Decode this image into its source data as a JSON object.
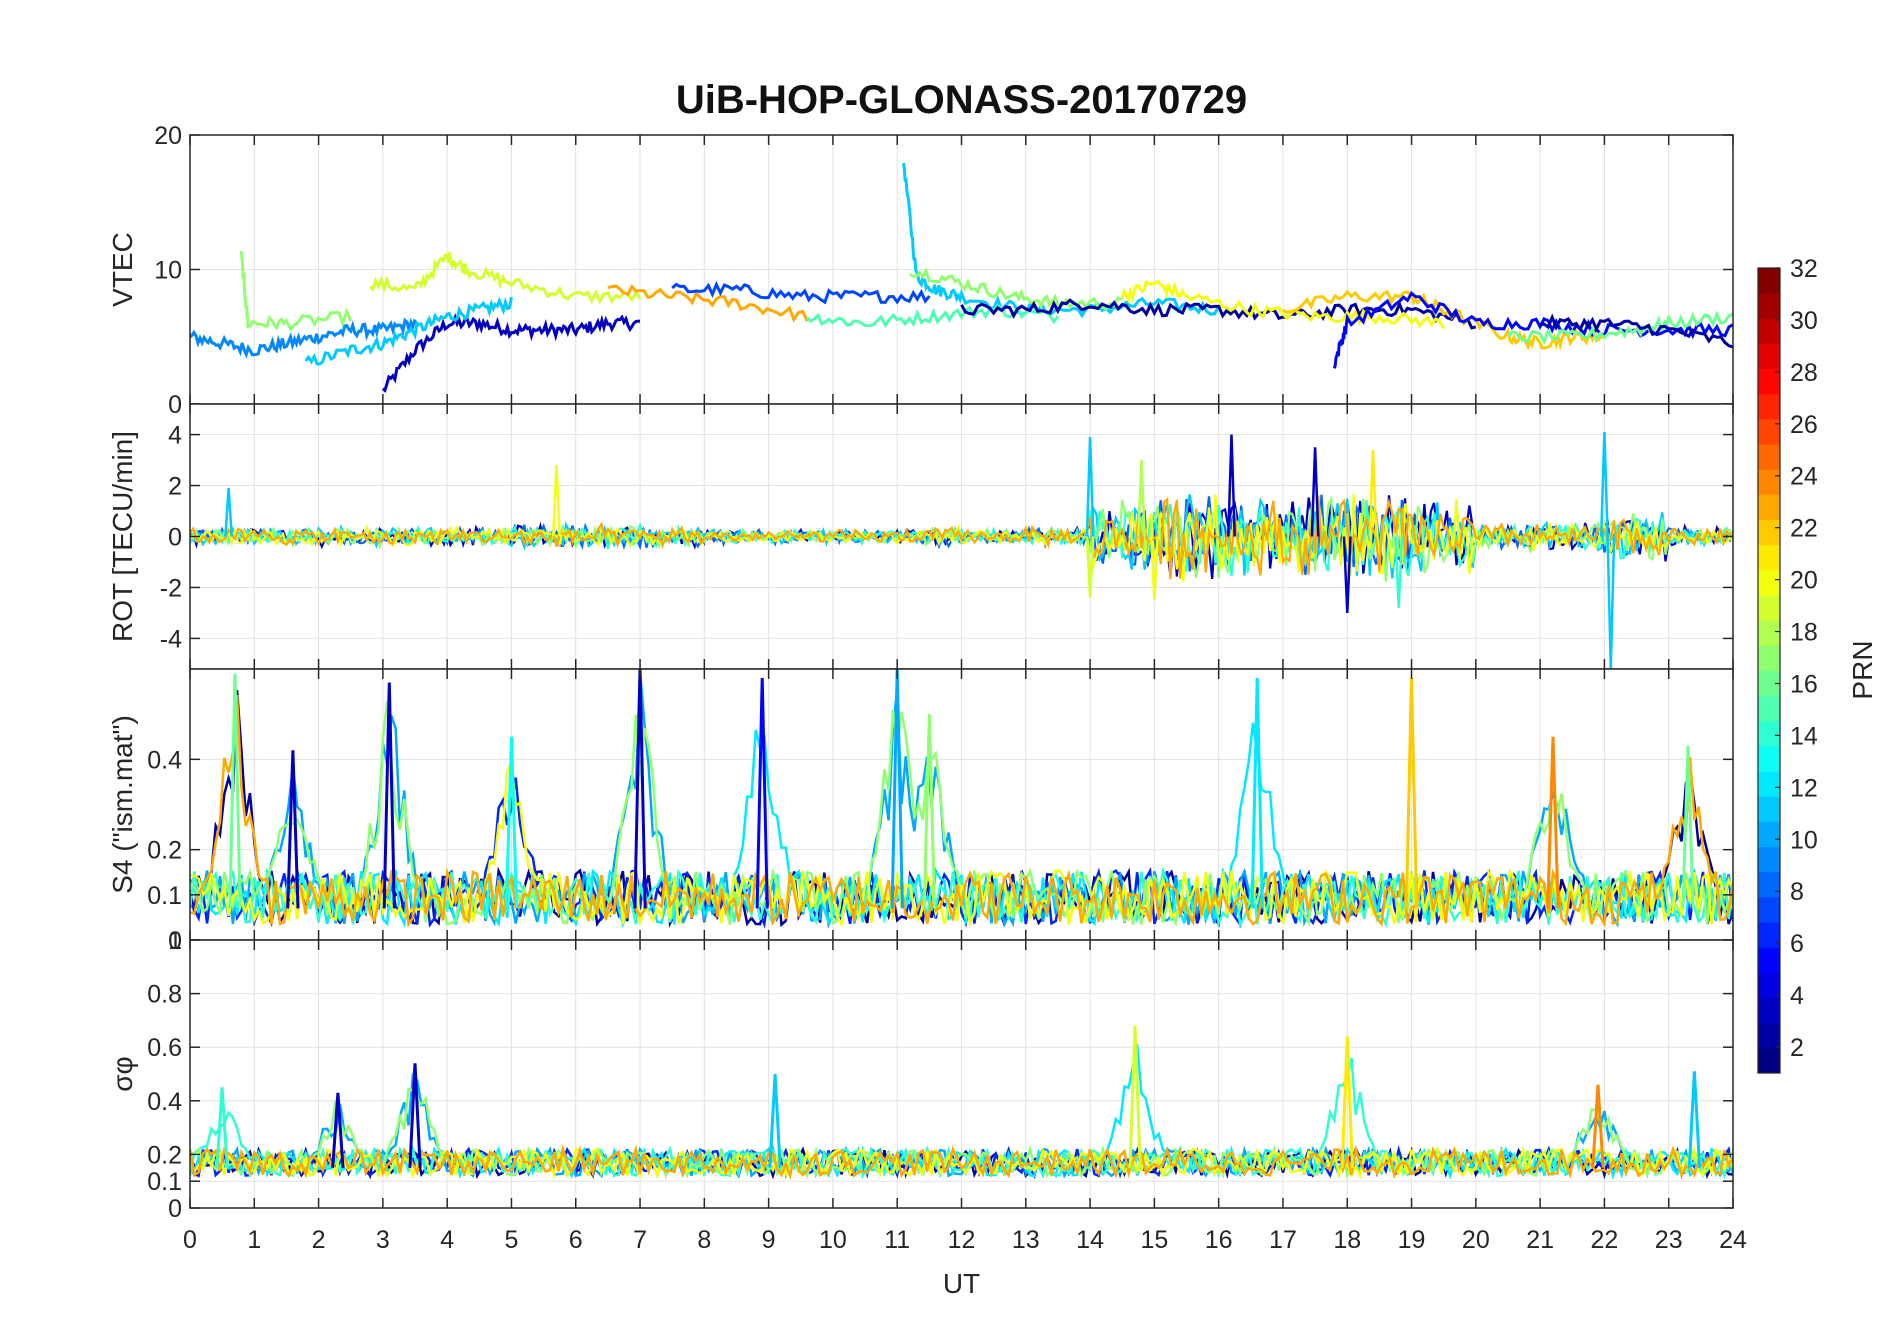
{
  "figure": {
    "title": "UiB-HOP-GLONASS-20170729",
    "xlabel": "UT",
    "x_ticks": [
      "0",
      "1",
      "2",
      "3",
      "4",
      "5",
      "6",
      "7",
      "8",
      "9",
      "10",
      "11",
      "12",
      "13",
      "14",
      "15",
      "16",
      "17",
      "18",
      "19",
      "20",
      "21",
      "22",
      "23",
      "24"
    ]
  },
  "colorbar": {
    "label": "PRN",
    "ticks": [
      "2",
      "4",
      "6",
      "8",
      "10",
      "12",
      "14",
      "16",
      "18",
      "20",
      "22",
      "24",
      "26",
      "28",
      "30",
      "32"
    ],
    "range": [
      1,
      32
    ],
    "colormap": "jet"
  },
  "chart_data": [
    {
      "type": "line",
      "panel": "vtec",
      "ylabel": "VTEC",
      "ylim": [
        0,
        20
      ],
      "xlim": [
        0,
        24
      ],
      "y_ticks": [
        "0",
        "10",
        "20"
      ],
      "grid": true,
      "series": [
        {
          "prn": 3,
          "x": [
            3.0,
            3.5,
            4.0,
            4.5,
            5.0,
            5.5,
            6.0,
            6.5,
            7.0
          ],
          "y": [
            1,
            4,
            6,
            6,
            5.5,
            5.5,
            5.5,
            6,
            6
          ]
        },
        {
          "prn": 9,
          "x": [
            0.0,
            0.5,
            1.0,
            1.5,
            2.0,
            2.5,
            3.0,
            3.5
          ],
          "y": [
            5,
            4.5,
            4,
            4.5,
            5,
            5.5,
            5.5,
            6
          ]
        },
        {
          "prn": 11,
          "x": [
            1.8,
            2.5,
            3.0,
            3.5,
            4.0,
            4.5,
            5.0
          ],
          "y": [
            3,
            4,
            4.5,
            5.5,
            6.5,
            7,
            7.5
          ]
        },
        {
          "prn": 11,
          "x": [
            11.1,
            11.3,
            11.6,
            12.0,
            13.0,
            14.0,
            15.0,
            16.0
          ],
          "y": [
            18,
            9.5,
            8.5,
            8,
            7,
            7,
            7.5,
            7
          ]
        },
        {
          "prn": 19,
          "x": [
            2.8,
            3.5,
            4.0,
            4.3,
            5.0,
            6.0,
            7.0
          ],
          "y": [
            9,
            8.5,
            11,
            10,
            9,
            8,
            8
          ]
        },
        {
          "prn": 17,
          "x": [
            0.8,
            0.9,
            1.5,
            2.5
          ],
          "y": [
            11,
            6,
            6,
            6.5
          ]
        },
        {
          "prn": 23,
          "x": [
            6.5,
            7.5,
            8.5,
            9.6
          ],
          "y": [
            8.5,
            8,
            7.5,
            6.5
          ]
        },
        {
          "prn": 7,
          "x": [
            7.5,
            8.5,
            9.5,
            10.5,
            11.5
          ],
          "y": [
            8.5,
            8.5,
            8,
            8,
            8
          ]
        },
        {
          "prn": 15,
          "x": [
            9.6,
            10.5,
            11.5,
            12.5,
            13.5
          ],
          "y": [
            6.5,
            6,
            6.5,
            7,
            6.5
          ]
        },
        {
          "prn": 17,
          "x": [
            11.2,
            12.0,
            12.8,
            13.5,
            14.5
          ],
          "y": [
            10,
            9,
            8,
            7.5,
            7.5
          ]
        },
        {
          "prn": 2,
          "x": [
            12.0,
            13.0,
            14.0,
            15.0,
            16.0,
            17.0,
            18.0,
            19.0,
            20.0
          ],
          "y": [
            7,
            7,
            7.5,
            7,
            7,
            6.5,
            7,
            7,
            6
          ]
        },
        {
          "prn": 20,
          "x": [
            14.5,
            15.0,
            15.5,
            16.5,
            17.5,
            18.5,
            19.5
          ],
          "y": [
            8,
            9,
            8,
            7,
            6.5,
            6.5,
            6
          ]
        },
        {
          "prn": 22,
          "x": [
            17.0,
            18.0,
            19.0,
            19.5,
            20.5,
            21.0,
            21.5,
            22.0
          ],
          "y": [
            7,
            8,
            8,
            7,
            5,
            4.5,
            5,
            5
          ]
        },
        {
          "prn": 5,
          "x": [
            17.8,
            18.0,
            19.0,
            20.0,
            21.0,
            22.0,
            23.0,
            24.0
          ],
          "y": [
            3,
            6,
            8,
            6,
            6,
            5.5,
            5.5,
            5.5
          ]
        },
        {
          "prn": 16,
          "x": [
            20.5,
            21.5,
            22.5,
            23.0,
            24.0
          ],
          "y": [
            5,
            5,
            5.5,
            6,
            6.5
          ]
        },
        {
          "prn": 2,
          "x": [
            21.0,
            22.0,
            23.0,
            24.0
          ],
          "y": [
            6,
            6,
            5.5,
            4.5
          ]
        }
      ]
    },
    {
      "type": "line",
      "panel": "rot",
      "ylabel": "ROT [TECU/min]",
      "ylim": [
        -5.2,
        5.2
      ],
      "xlim": [
        0,
        24
      ],
      "y_ticks": [
        "-4",
        "-2",
        "0",
        "2",
        "4"
      ],
      "grid": true,
      "spikes": [
        {
          "x": 0.6,
          "y": 1.9,
          "prn": 11
        },
        {
          "x": 5.7,
          "y": 2.8,
          "prn": 20
        },
        {
          "x": 14.0,
          "y": 3.9,
          "prn": 11
        },
        {
          "x": 14.0,
          "y": -2.4,
          "prn": 19
        },
        {
          "x": 16.2,
          "y": 4.0,
          "prn": 3
        },
        {
          "x": 17.5,
          "y": 3.5,
          "prn": 3
        },
        {
          "x": 18.0,
          "y": -3.0,
          "prn": 3
        },
        {
          "x": 18.4,
          "y": 3.4,
          "prn": 21
        },
        {
          "x": 18.8,
          "y": -2.8,
          "prn": 14
        },
        {
          "x": 22.0,
          "y": 4.1,
          "prn": 11
        },
        {
          "x": 22.1,
          "y": -5.2,
          "prn": 11
        },
        {
          "x": 15.0,
          "y": -2.5,
          "prn": 20
        },
        {
          "x": 14.8,
          "y": 3.0,
          "prn": 18
        }
      ],
      "activity": [
        0.4,
        0.4,
        0.4,
        0.4,
        0.4,
        0.5,
        0.5,
        0.5,
        0.3,
        0.3,
        0.3,
        0.4,
        0.3,
        0.4,
        1.5,
        2.0,
        1.8,
        1.8,
        2.0,
        1.6,
        0.6,
        0.6,
        1.0,
        0.4,
        0.4
      ]
    },
    {
      "type": "line",
      "panel": "s4",
      "ylabel": "S4 (\"ism.mat\")",
      "ylim": [
        0,
        0.6
      ],
      "xlim": [
        0,
        24
      ],
      "y_ticks": [
        "0",
        "0.1",
        "0.2",
        "0.4"
      ],
      "grid": true,
      "peaks": [
        {
          "x": 0.7,
          "y": 0.59,
          "prn": 16
        },
        {
          "x": 1.6,
          "y": 0.42,
          "prn": 3
        },
        {
          "x": 3.1,
          "y": 0.57,
          "prn": 3
        },
        {
          "x": 5.0,
          "y": 0.45,
          "prn": 13
        },
        {
          "x": 7.0,
          "y": 0.6,
          "prn": 3
        },
        {
          "x": 8.9,
          "y": 0.58,
          "prn": 5
        },
        {
          "x": 11.0,
          "y": 0.6,
          "prn": 10
        },
        {
          "x": 11.5,
          "y": 0.5,
          "prn": 17
        },
        {
          "x": 16.6,
          "y": 0.58,
          "prn": 12
        },
        {
          "x": 19.0,
          "y": 0.58,
          "prn": 22
        },
        {
          "x": 21.2,
          "y": 0.45,
          "prn": 24
        },
        {
          "x": 23.3,
          "y": 0.43,
          "prn": 16
        }
      ],
      "baseline": 0.07
    },
    {
      "type": "line",
      "panel": "sigma_phi",
      "ylabel": "σφ",
      "ylim": [
        0,
        1
      ],
      "xlim": [
        0,
        24
      ],
      "y_ticks": [
        "0",
        "0.1",
        "0.2",
        "0.4",
        "0.6",
        "0.8",
        "1"
      ],
      "grid": true,
      "peaks": [
        {
          "x": 0.5,
          "y": 0.45,
          "prn": 14
        },
        {
          "x": 2.3,
          "y": 0.43,
          "prn": 3
        },
        {
          "x": 3.5,
          "y": 0.54,
          "prn": 3
        },
        {
          "x": 9.1,
          "y": 0.5,
          "prn": 11
        },
        {
          "x": 14.7,
          "y": 0.68,
          "prn": 19
        },
        {
          "x": 18.0,
          "y": 0.64,
          "prn": 21
        },
        {
          "x": 21.9,
          "y": 0.46,
          "prn": 24
        },
        {
          "x": 23.4,
          "y": 0.51,
          "prn": 11
        }
      ],
      "baseline": 0.15
    }
  ]
}
